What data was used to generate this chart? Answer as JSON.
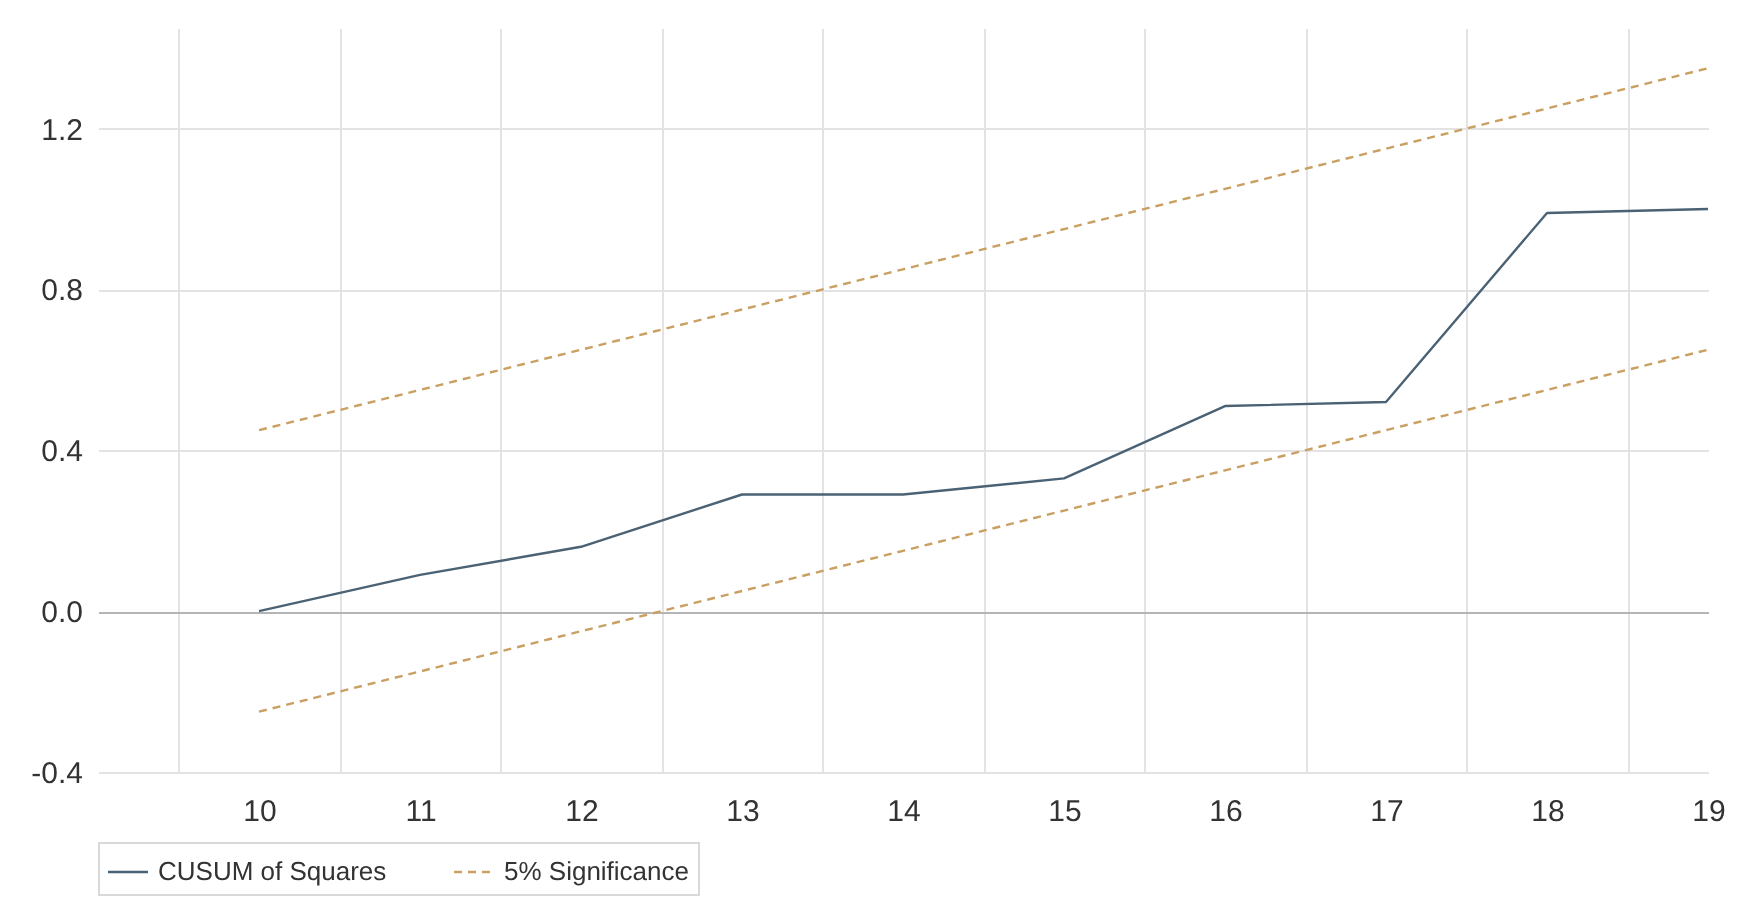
{
  "chart_data": {
    "type": "line",
    "categories": [
      "10",
      "11",
      "12",
      "13",
      "14",
      "15",
      "16",
      "17",
      "18",
      "19"
    ],
    "series": [
      {
        "name": "CUSUM of Squares",
        "color": "#4a6274",
        "line_style": "solid",
        "values": [
          0.0,
          0.09,
          0.16,
          0.29,
          0.29,
          0.33,
          0.51,
          0.52,
          0.99,
          1.0
        ]
      },
      {
        "name": "5% Significance",
        "color": "#c9a062",
        "line_style": "dashed",
        "values": [
          0.45,
          0.55,
          0.65,
          0.75,
          0.85,
          0.95,
          1.05,
          1.15,
          1.25,
          1.35
        ]
      },
      {
        "color": "#c9a062",
        "line_style": "dashed",
        "values": [
          -0.25,
          -0.15,
          -0.05,
          0.05,
          0.15,
          0.25,
          0.35,
          0.45,
          0.55,
          0.65
        ]
      }
    ],
    "ylim": [
      -0.4,
      1.45
    ],
    "yticks": [
      -0.4,
      {
        "value": 0,
        "label": "0.0"
      },
      0.4,
      0.8,
      1.2
    ],
    "grid": true,
    "legend": "bottom",
    "marker": "none"
  }
}
